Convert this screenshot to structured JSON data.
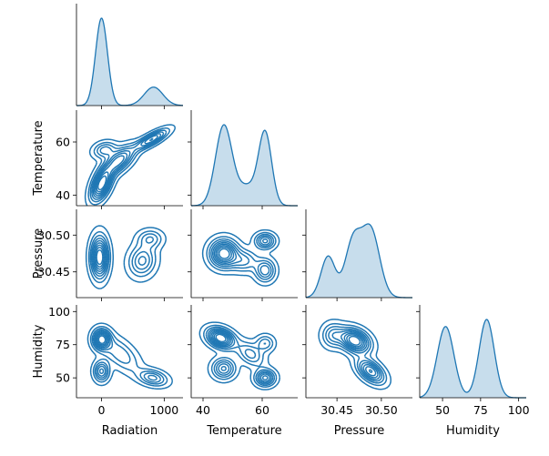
{
  "chart_data": {
    "type": "pairplot",
    "kind": "kde",
    "corner": true,
    "color": "#1f77b4",
    "variables": [
      "Radiation",
      "Temperature",
      "Pressure",
      "Humidity"
    ],
    "axes": {
      "Radiation": {
        "range": [
          -400,
          1300
        ],
        "ticks": [
          0,
          1000
        ],
        "tick_labels": [
          "0",
          "1000"
        ]
      },
      "Temperature": {
        "range": [
          36,
          72
        ],
        "ticks": [
          40,
          60
        ],
        "tick_labels": [
          "40",
          "60"
        ]
      },
      "Pressure": {
        "range": [
          30.415,
          30.535
        ],
        "ticks": [
          30.45,
          30.5
        ],
        "tick_labels": [
          "30.45",
          "30.50"
        ]
      },
      "Humidity": {
        "range": [
          35,
          105
        ],
        "ticks": [
          50,
          75,
          100
        ],
        "tick_labels": [
          "50",
          "75",
          "100"
        ]
      }
    },
    "diagonal": {
      "Radiation": {
        "peaks": [
          {
            "mu": 0,
            "sigma": 95,
            "weight": 0.75
          },
          {
            "mu": 830,
            "sigma": 150,
            "weight": 0.25
          }
        ]
      },
      "Temperature": {
        "peaks": [
          {
            "mu": 47,
            "sigma": 2.8,
            "weight": 0.5
          },
          {
            "mu": 55,
            "sigma": 3.5,
            "weight": 0.15
          },
          {
            "mu": 61,
            "sigma": 2.2,
            "weight": 0.35
          }
        ]
      },
      "Pressure": {
        "peaks": [
          {
            "mu": 30.44,
            "sigma": 0.008,
            "weight": 0.22
          },
          {
            "mu": 30.468,
            "sigma": 0.009,
            "weight": 0.33
          },
          {
            "mu": 30.488,
            "sigma": 0.01,
            "weight": 0.45
          }
        ]
      },
      "Humidity": {
        "peaks": [
          {
            "mu": 52,
            "sigma": 5.5,
            "weight": 0.5
          },
          {
            "mu": 79,
            "sigma": 5.0,
            "weight": 0.5
          }
        ]
      }
    },
    "bivariate": [
      {
        "x": "Radiation",
        "y": "Temperature",
        "components": [
          {
            "mx": 0,
            "my": 44,
            "sx": 110,
            "sy": 4.0,
            "rho": 0.5,
            "w": 0.8
          },
          {
            "mx": 280,
            "my": 53,
            "sx": 160,
            "sy": 3.5,
            "rho": 0.6,
            "w": 0.6
          },
          {
            "mx": 800,
            "my": 61,
            "sx": 170,
            "sy": 2.5,
            "rho": 0.8,
            "w": 0.55
          },
          {
            "mx": 50,
            "my": 57,
            "sx": 120,
            "sy": 2.0,
            "rho": 0.2,
            "w": 0.35
          }
        ]
      },
      {
        "x": "Radiation",
        "y": "Pressure",
        "components": [
          {
            "mx": -30,
            "my": 30.47,
            "sx": 90,
            "sy": 0.018,
            "rho": 0.0,
            "w": 1.0
          },
          {
            "mx": 650,
            "my": 30.465,
            "sx": 140,
            "sy": 0.014,
            "rho": 0.1,
            "w": 0.5
          },
          {
            "mx": 780,
            "my": 30.495,
            "sx": 130,
            "sy": 0.008,
            "rho": 0.0,
            "w": 0.35
          }
        ]
      },
      {
        "x": "Temperature",
        "y": "Pressure",
        "components": [
          {
            "mx": 47,
            "my": 30.475,
            "sx": 3.0,
            "sy": 0.012,
            "rho": 0.0,
            "w": 0.9
          },
          {
            "mx": 61,
            "my": 30.492,
            "sx": 2.2,
            "sy": 0.007,
            "rho": 0.0,
            "w": 0.55
          },
          {
            "mx": 61,
            "my": 30.452,
            "sx": 2.2,
            "sy": 0.01,
            "rho": 0.0,
            "w": 0.5
          },
          {
            "mx": 54,
            "my": 30.465,
            "sx": 3.0,
            "sy": 0.01,
            "rho": 0.0,
            "w": 0.35
          }
        ]
      },
      {
        "x": "Radiation",
        "y": "Humidity",
        "components": [
          {
            "mx": 0,
            "my": 79,
            "sx": 90,
            "sy": 5.0,
            "rho": 0.0,
            "w": 0.9
          },
          {
            "mx": 0,
            "my": 55,
            "sx": 80,
            "sy": 5.0,
            "rho": 0.0,
            "w": 0.6
          },
          {
            "mx": 300,
            "my": 68,
            "sx": 200,
            "sy": 9.0,
            "rho": -0.6,
            "w": 0.35
          },
          {
            "mx": 820,
            "my": 50,
            "sx": 150,
            "sy": 4.0,
            "rho": -0.3,
            "w": 0.5
          }
        ]
      },
      {
        "x": "Temperature",
        "y": "Humidity",
        "components": [
          {
            "mx": 46,
            "my": 80,
            "sx": 3.0,
            "sy": 5.0,
            "rho": -0.3,
            "w": 0.85
          },
          {
            "mx": 47,
            "my": 57,
            "sx": 2.5,
            "sy": 5.0,
            "rho": 0.0,
            "w": 0.5
          },
          {
            "mx": 56,
            "my": 68,
            "sx": 3.0,
            "sy": 6.0,
            "rho": -0.4,
            "w": 0.35
          },
          {
            "mx": 61,
            "my": 50,
            "sx": 2.2,
            "sy": 4.0,
            "rho": 0.0,
            "w": 0.6
          },
          {
            "mx": 61,
            "my": 76,
            "sx": 2.0,
            "sy": 4.0,
            "rho": 0.0,
            "w": 0.3
          }
        ]
      },
      {
        "x": "Pressure",
        "y": "Humidity",
        "components": [
          {
            "mx": 30.47,
            "my": 78,
            "sx": 0.011,
            "sy": 6.0,
            "rho": -0.3,
            "w": 0.9
          },
          {
            "mx": 30.488,
            "my": 55,
            "sx": 0.01,
            "sy": 6.0,
            "rho": -0.5,
            "w": 0.7
          },
          {
            "mx": 30.445,
            "my": 82,
            "sx": 0.008,
            "sy": 6.0,
            "rho": 0.0,
            "w": 0.35
          }
        ]
      }
    ],
    "contour_levels": [
      0.06,
      0.16,
      0.26,
      0.36,
      0.46,
      0.56,
      0.66,
      0.76,
      0.86
    ],
    "grid": false,
    "legend": "none"
  }
}
